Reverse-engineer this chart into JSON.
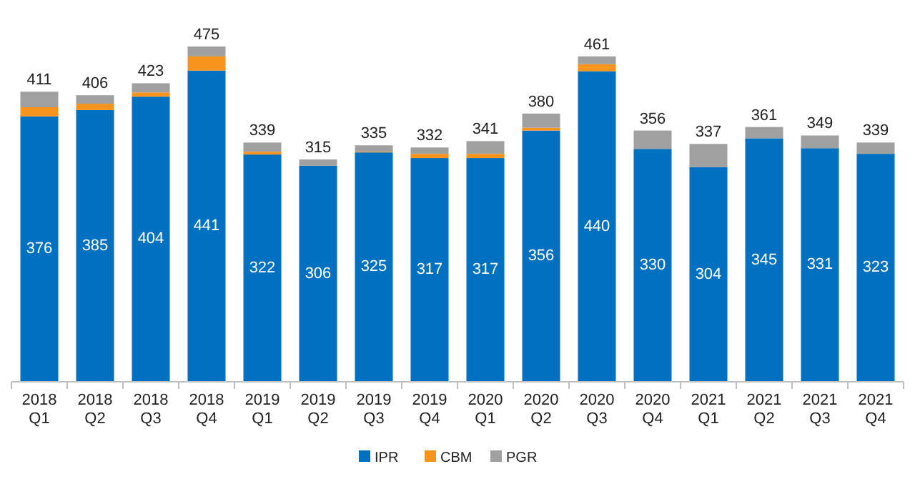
{
  "chart_data": {
    "type": "bar",
    "stacked": true,
    "categories": [
      "2018 Q1",
      "2018 Q2",
      "2018 Q3",
      "2018 Q4",
      "2019 Q1",
      "2019 Q2",
      "2019 Q3",
      "2019 Q4",
      "2020 Q1",
      "2020 Q2",
      "2020 Q3",
      "2020 Q4",
      "2021 Q1",
      "2021 Q2",
      "2021 Q3",
      "2021 Q4"
    ],
    "series": [
      {
        "name": "IPR",
        "color": "#0070c0",
        "values": [
          376,
          385,
          404,
          441,
          322,
          306,
          325,
          317,
          317,
          356,
          440,
          330,
          304,
          345,
          331,
          323
        ],
        "value_labels": [
          "376",
          "385",
          "404",
          "441",
          "322",
          "306",
          "325",
          "317",
          "317",
          "356",
          "440",
          "330",
          "304",
          "345",
          "331",
          "323"
        ]
      },
      {
        "name": "CBM",
        "color": "#f7941d",
        "values": [
          13,
          9,
          6,
          20,
          4,
          0,
          1,
          6,
          6,
          4,
          10,
          0,
          0,
          0,
          0,
          0
        ]
      },
      {
        "name": "PGR",
        "color": "#a0a0a0",
        "values": [
          22,
          12,
          13,
          14,
          13,
          9,
          9,
          9,
          18,
          20,
          11,
          26,
          33,
          16,
          18,
          16
        ]
      }
    ],
    "totals": [
      "411",
      "406",
      "423",
      "475",
      "339",
      "315",
      "335",
      "332",
      "341",
      "380",
      "461",
      "356",
      "337",
      "361",
      "349",
      "339"
    ],
    "legend": "bottom"
  }
}
